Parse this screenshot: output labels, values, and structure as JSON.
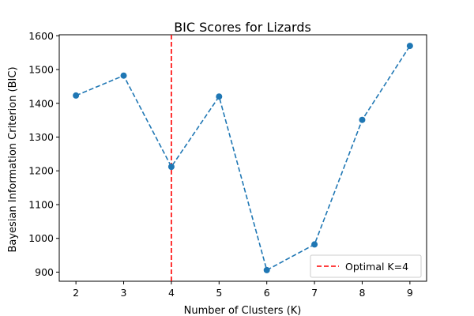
{
  "chart_data": {
    "type": "line",
    "title": "BIC Scores for Lizards",
    "xlabel": "Number of Clusters (K)",
    "ylabel": "Bayesian Information Criterion (BIC)",
    "x": [
      2,
      3,
      4,
      5,
      6,
      7,
      8,
      9
    ],
    "series": [
      {
        "values": [
          1423,
          1482,
          1212,
          1420,
          906,
          982,
          1351,
          1570
        ],
        "color": "#1f77b4",
        "line_style": "dashed",
        "marker": "circle"
      }
    ],
    "xticks": [
      "2",
      "3",
      "4",
      "5",
      "6",
      "7",
      "8",
      "9"
    ],
    "yticks": [
      "900",
      "1000",
      "1100",
      "1200",
      "1300",
      "1400",
      "1500",
      "1600"
    ],
    "xlim": [
      1.65,
      9.35
    ],
    "ylim": [
      873,
      1603
    ],
    "reference_line": {
      "orientation": "vertical",
      "x": 4,
      "color": "#ff0000",
      "line_style": "dashed",
      "label": "Optimal K=4"
    },
    "legend": {
      "position": "lower-right",
      "entries": [
        "Optimal K=4"
      ]
    },
    "grid": false
  }
}
